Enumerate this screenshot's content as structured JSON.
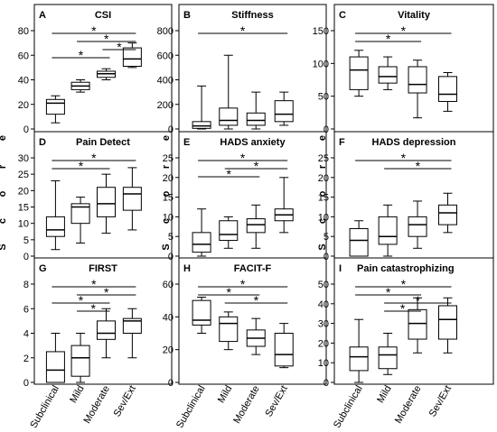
{
  "figure": {
    "y_axis_label_letters": [
      "S",
      "c",
      "o",
      "r",
      "e"
    ]
  },
  "chart_data": [
    {
      "type": "box",
      "letter": "A",
      "title": "CSI",
      "categories": [
        "Subclinical",
        "Mild",
        "Moderate",
        "Sev/Ext"
      ],
      "ylim": [
        0,
        80
      ],
      "yticks": [
        0,
        20,
        40,
        60,
        80
      ],
      "boxes": [
        {
          "min": 5,
          "q1": 12,
          "median": 21,
          "q3": 24,
          "max": 27
        },
        {
          "min": 30,
          "q1": 32,
          "median": 35,
          "q3": 38,
          "max": 40
        },
        {
          "min": 40,
          "q1": 42,
          "median": 45,
          "q3": 47,
          "max": 49
        },
        {
          "min": 50,
          "q1": 51,
          "median": 57,
          "q3": 66,
          "max": 70
        }
      ],
      "significance": [
        {
          "from": 0,
          "to": 3,
          "label": "*"
        },
        {
          "from": 1,
          "to": 3,
          "label": "*"
        },
        {
          "from": 2,
          "to": 3,
          "label": "*"
        },
        {
          "from": 0,
          "to": 2,
          "label": "*"
        }
      ]
    },
    {
      "type": "box",
      "letter": "B",
      "title": "Stiffness",
      "categories": [
        "Subclinical",
        "Mild",
        "Moderate",
        "Sev/Ext"
      ],
      "ylim": [
        0,
        800
      ],
      "yticks": [
        0,
        200,
        400,
        600,
        800
      ],
      "boxes": [
        {
          "min": 0,
          "q1": 5,
          "median": 25,
          "q3": 60,
          "max": 350
        },
        {
          "min": 0,
          "q1": 30,
          "median": 70,
          "q3": 170,
          "max": 600
        },
        {
          "min": 0,
          "q1": 30,
          "median": 70,
          "q3": 130,
          "max": 300
        },
        {
          "min": 30,
          "q1": 60,
          "median": 120,
          "q3": 230,
          "max": 300
        }
      ],
      "significance": [
        {
          "from": 0,
          "to": 3,
          "label": "*"
        }
      ]
    },
    {
      "type": "box",
      "letter": "C",
      "title": "Vitality",
      "categories": [
        "Subclinical",
        "Mild",
        "Moderate",
        "Sev/Ext"
      ],
      "ylim": [
        0,
        150
      ],
      "yticks": [
        0,
        50,
        100,
        150
      ],
      "boxes": [
        {
          "min": 50,
          "q1": 60,
          "median": 90,
          "q3": 110,
          "max": 120
        },
        {
          "min": 60,
          "q1": 70,
          "median": 80,
          "q3": 95,
          "max": 110
        },
        {
          "min": 17,
          "q1": 55,
          "median": 68,
          "q3": 95,
          "max": 105
        },
        {
          "min": 27,
          "q1": 42,
          "median": 53,
          "q3": 80,
          "max": 86
        }
      ],
      "significance": [
        {
          "from": 0,
          "to": 3,
          "label": "*"
        },
        {
          "from": 0,
          "to": 2,
          "label": "*"
        }
      ]
    },
    {
      "type": "box",
      "letter": "D",
      "title": "Pain Detect",
      "categories": [
        "Subclinical",
        "Mild",
        "Moderate",
        "Sev/Ext"
      ],
      "ylim": [
        0,
        30
      ],
      "yticks": [
        0,
        5,
        10,
        15,
        20,
        25,
        30
      ],
      "boxes": [
        {
          "min": 2,
          "q1": 6,
          "median": 8,
          "q3": 12,
          "max": 23
        },
        {
          "min": 4,
          "q1": 10,
          "median": 15,
          "q3": 16,
          "max": 18
        },
        {
          "min": 7,
          "q1": 12,
          "median": 16,
          "q3": 21,
          "max": 25
        },
        {
          "min": 8,
          "q1": 14,
          "median": 19,
          "q3": 21,
          "max": 27
        }
      ],
      "significance": [
        {
          "from": 0,
          "to": 3,
          "label": "*"
        },
        {
          "from": 0,
          "to": 2,
          "label": "*"
        }
      ]
    },
    {
      "type": "box",
      "letter": "E",
      "title": "HADS anxiety",
      "categories": [
        "Subclinical",
        "Mild",
        "Moderate",
        "Sev/Ext"
      ],
      "ylim": [
        0,
        25
      ],
      "yticks": [
        0,
        5,
        10,
        15,
        20,
        25
      ],
      "boxes": [
        {
          "min": 0,
          "q1": 1,
          "median": 3,
          "q3": 6,
          "max": 12
        },
        {
          "min": 2,
          "q1": 4,
          "median": 5.5,
          "q3": 9,
          "max": 10
        },
        {
          "min": 2,
          "q1": 6,
          "median": 8,
          "q3": 9.5,
          "max": 13
        },
        {
          "min": 6,
          "q1": 9,
          "median": 10.5,
          "q3": 12,
          "max": 20
        }
      ],
      "significance": [
        {
          "from": 0,
          "to": 3,
          "label": "*"
        },
        {
          "from": 1,
          "to": 3,
          "label": "*"
        },
        {
          "from": 0,
          "to": 2,
          "label": "*"
        }
      ]
    },
    {
      "type": "box",
      "letter": "F",
      "title": "HADS depression",
      "categories": [
        "Subclinical",
        "Mild",
        "Moderate",
        "Sev/Ext"
      ],
      "ylim": [
        0,
        25
      ],
      "yticks": [
        0,
        5,
        10,
        15,
        20,
        25
      ],
      "boxes": [
        {
          "min": 0,
          "q1": 0,
          "median": 4,
          "q3": 7,
          "max": 9
        },
        {
          "min": 0,
          "q1": 3,
          "median": 5,
          "q3": 10,
          "max": 13
        },
        {
          "min": 2,
          "q1": 5,
          "median": 8,
          "q3": 10,
          "max": 14
        },
        {
          "min": 6,
          "q1": 8,
          "median": 11,
          "q3": 13,
          "max": 16
        }
      ],
      "significance": [
        {
          "from": 0,
          "to": 3,
          "label": "*"
        },
        {
          "from": 1,
          "to": 3,
          "label": "*"
        }
      ]
    },
    {
      "type": "box",
      "letter": "G",
      "title": "FIRST",
      "categories": [
        "Subclinical",
        "Mild",
        "Moderate",
        "Sev/Ext"
      ],
      "ylim": [
        0,
        8
      ],
      "yticks": [
        0,
        2,
        4,
        6,
        8
      ],
      "boxes": [
        {
          "min": 0,
          "q1": 0,
          "median": 1,
          "q3": 2.5,
          "max": 4
        },
        {
          "min": 0,
          "q1": 0.5,
          "median": 2,
          "q3": 3,
          "max": 4
        },
        {
          "min": 2,
          "q1": 3.5,
          "median": 4,
          "q3": 5,
          "max": 6
        },
        {
          "min": 2,
          "q1": 4,
          "median": 5,
          "q3": 5.2,
          "max": 6
        }
      ],
      "significance": [
        {
          "from": 0,
          "to": 3,
          "label": "*"
        },
        {
          "from": 1,
          "to": 3,
          "label": "*"
        },
        {
          "from": 0,
          "to": 2,
          "label": "*"
        },
        {
          "from": 1,
          "to": 2,
          "label": "*"
        }
      ]
    },
    {
      "type": "box",
      "letter": "H",
      "title": "FACIT-F",
      "categories": [
        "Subclinical",
        "Mild",
        "Moderate",
        "Sev/Ext"
      ],
      "ylim": [
        0,
        60
      ],
      "yticks": [
        0,
        20,
        40,
        60
      ],
      "boxes": [
        {
          "min": 30,
          "q1": 35,
          "median": 38,
          "q3": 50,
          "max": 52
        },
        {
          "min": 20,
          "q1": 25,
          "median": 36,
          "q3": 40,
          "max": 43
        },
        {
          "min": 17,
          "q1": 22,
          "median": 27,
          "q3": 32,
          "max": 39
        },
        {
          "min": 9,
          "q1": 10,
          "median": 17,
          "q3": 30,
          "max": 36
        }
      ],
      "significance": [
        {
          "from": 0,
          "to": 3,
          "label": "*"
        },
        {
          "from": 0,
          "to": 2,
          "label": "*"
        },
        {
          "from": 1,
          "to": 3,
          "label": "*"
        }
      ]
    },
    {
      "type": "box",
      "letter": "I",
      "title": "Pain catastrophizing",
      "categories": [
        "Subclinical",
        "Mild",
        "Moderate",
        "Sev/Ext"
      ],
      "ylim": [
        0,
        50
      ],
      "yticks": [
        0,
        10,
        20,
        30,
        40,
        50
      ],
      "boxes": [
        {
          "min": 0,
          "q1": 6,
          "median": 13,
          "q3": 18,
          "max": 32
        },
        {
          "min": 4,
          "q1": 7,
          "median": 14,
          "q3": 18,
          "max": 25
        },
        {
          "min": 15,
          "q1": 22,
          "median": 30,
          "q3": 37,
          "max": 43
        },
        {
          "min": 15,
          "q1": 22,
          "median": 32,
          "q3": 39,
          "max": 43
        }
      ],
      "significance": [
        {
          "from": 0,
          "to": 3,
          "label": "*"
        },
        {
          "from": 0,
          "to": 2,
          "label": "*"
        },
        {
          "from": 1,
          "to": 3,
          "label": "*"
        },
        {
          "from": 1,
          "to": 2,
          "label": "*"
        }
      ]
    }
  ]
}
